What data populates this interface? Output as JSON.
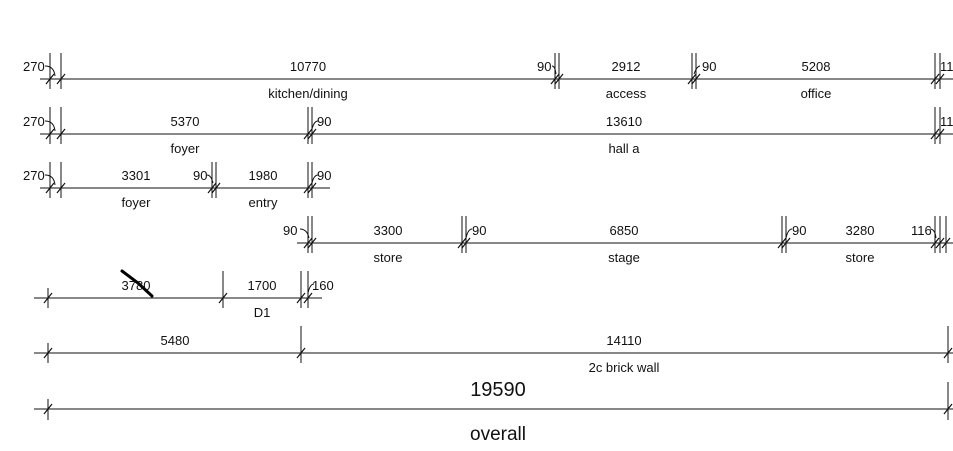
{
  "dimension_rows": [
    {
      "name": "row-1",
      "dimensions": [
        "270",
        "10770",
        "90",
        "2912",
        "90",
        "5208",
        "11"
      ],
      "labels": [
        "kitchen/dining",
        "access",
        "office"
      ]
    },
    {
      "name": "row-2",
      "dimensions": [
        "270",
        "5370",
        "90",
        "13610",
        "11"
      ],
      "labels": [
        "foyer",
        "hall a"
      ]
    },
    {
      "name": "row-3",
      "dimensions": [
        "270",
        "3301",
        "90",
        "1980",
        "90"
      ],
      "labels": [
        "foyer",
        "entry"
      ]
    },
    {
      "name": "row-4",
      "dimensions": [
        "90",
        "3300",
        "90",
        "6850",
        "90",
        "3280",
        "116"
      ],
      "labels": [
        "store",
        "stage",
        "store"
      ]
    },
    {
      "name": "row-5",
      "dimensions": [
        "3780",
        "1700",
        "160"
      ],
      "labels": [
        "D1"
      ]
    },
    {
      "name": "row-6",
      "dimensions": [
        "5480",
        "14110"
      ],
      "labels": [
        "2c brick wall"
      ]
    },
    {
      "name": "row-7",
      "dimensions": [
        "19590"
      ],
      "labels": [
        "overall"
      ]
    }
  ]
}
